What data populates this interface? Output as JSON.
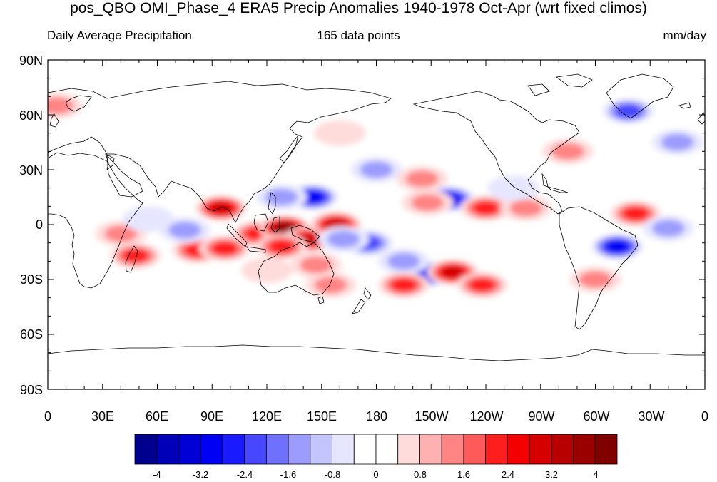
{
  "title": "pos_QBO OMI_Phase_4 ERA5 Precip Anomalies 1940-1978 Oct-Apr (wrt fixed climos)",
  "subtitle_left": "Daily Average Precipitation",
  "subtitle_center": "165 data points",
  "subtitle_right": "mm/day",
  "lat_labels": [
    "90N",
    "60N",
    "30N",
    "0",
    "30S",
    "60S",
    "90S"
  ],
  "lon_labels": [
    "0",
    "30E",
    "60E",
    "90E",
    "120E",
    "150E",
    "180",
    "150W",
    "120W",
    "90W",
    "60W",
    "30W",
    "0"
  ],
  "colorbar": {
    "colors": [
      "#00008f",
      "#0000b8",
      "#0000d6",
      "#0000f5",
      "#1a1aff",
      "#4747ff",
      "#7070ff",
      "#9c9cff",
      "#c4c4ff",
      "#e6e6ff",
      "#ffffff",
      "#ffffff",
      "#ffdcdc",
      "#ffb0b0",
      "#ff8484",
      "#ff5a5a",
      "#ff1e1e",
      "#f50000",
      "#d60000",
      "#b80000",
      "#9a0000",
      "#800000"
    ],
    "labels": [
      "-4",
      "-3.2",
      "-2.4",
      "-1.6",
      "-0.8",
      "0",
      "0.8",
      "1.6",
      "2.4",
      "3.2",
      "4"
    ]
  },
  "anomaly_fields": [
    {
      "lon": 95,
      "lat": 9,
      "val": 2.8
    },
    {
      "lon": 82,
      "lat": -14,
      "val": 2.4
    },
    {
      "lon": 97,
      "lat": -13,
      "val": 2.0
    },
    {
      "lon": 115,
      "lat": -5,
      "val": 2.4
    },
    {
      "lon": 130,
      "lat": -2,
      "val": 3.6
    },
    {
      "lon": 143,
      "lat": -8,
      "val": 3.2
    },
    {
      "lon": 158,
      "lat": 0,
      "val": 2.6
    },
    {
      "lon": 128,
      "lat": -12,
      "val": 2.4
    },
    {
      "lon": 147,
      "lat": -22,
      "val": 1.6
    },
    {
      "lon": 155,
      "lat": -33,
      "val": 1.4
    },
    {
      "lon": 48,
      "lat": -17,
      "val": 2.0
    },
    {
      "lon": 40,
      "lat": -5,
      "val": 1.0
    },
    {
      "lon": 75,
      "lat": -3,
      "val": -1.2
    },
    {
      "lon": 55,
      "lat": 3,
      "val": -0.8
    },
    {
      "lon": 145,
      "lat": 15,
      "val": -2.8
    },
    {
      "lon": 128,
      "lat": 15,
      "val": -1.6
    },
    {
      "lon": 175,
      "lat": -10,
      "val": -1.8
    },
    {
      "lon": 162,
      "lat": -8,
      "val": -1.4
    },
    {
      "lon": 208,
      "lat": -27,
      "val": -2.8
    },
    {
      "lon": 195,
      "lat": -20,
      "val": -1.6
    },
    {
      "lon": 222,
      "lat": -26,
      "val": 3.0
    },
    {
      "lon": 238,
      "lat": -33,
      "val": 2.0
    },
    {
      "lon": 195,
      "lat": -33,
      "val": 1.8
    },
    {
      "lon": 220,
      "lat": 14,
      "val": -2.6
    },
    {
      "lon": 240,
      "lat": 9,
      "val": 1.8
    },
    {
      "lon": 262,
      "lat": 9,
      "val": 1.2
    },
    {
      "lon": 208,
      "lat": 12,
      "val": 1.2
    },
    {
      "lon": 312,
      "lat": -12,
      "val": -3.0
    },
    {
      "lon": 322,
      "lat": 6,
      "val": 2.0
    },
    {
      "lon": 340,
      "lat": -2,
      "val": -1.0
    },
    {
      "lon": 180,
      "lat": 30,
      "val": -1.4
    },
    {
      "lon": 205,
      "lat": 25,
      "val": 1.0
    },
    {
      "lon": 318,
      "lat": 62,
      "val": -2.4
    },
    {
      "lon": 345,
      "lat": 45,
      "val": -1.0
    },
    {
      "lon": 285,
      "lat": 40,
      "val": 1.0
    },
    {
      "lon": 5,
      "lat": 65,
      "val": 1.0
    },
    {
      "lon": 160,
      "lat": 50,
      "val": 0.8
    },
    {
      "lon": 255,
      "lat": 20,
      "val": -0.8
    },
    {
      "lon": 300,
      "lat": -30,
      "val": 0.9
    },
    {
      "lon": 120,
      "lat": -25,
      "val": 0.8
    }
  ]
}
